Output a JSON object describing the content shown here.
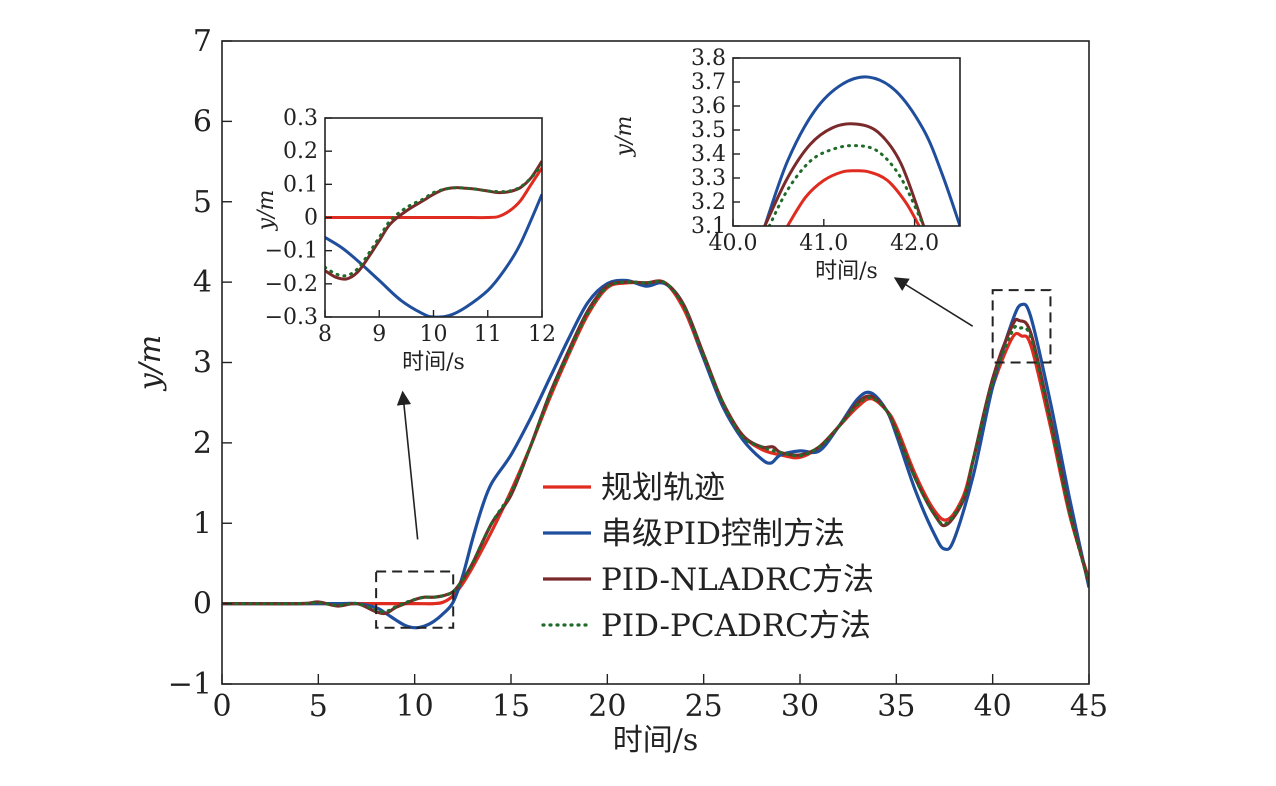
{
  "colors": {
    "planned": "#e02b20",
    "cascade_pid": "#1f4e9c",
    "pid_nladrc": "#7a2a2a",
    "pid_pcadrc": "#1f6b2a",
    "axis": "#222222",
    "dashed_box": "#222222"
  },
  "chart_data": [
    {
      "id": "main",
      "type": "line",
      "xlabel": "时间/s",
      "ylabel": "y/m",
      "xlim": [
        0,
        45
      ],
      "ylim": [
        -1,
        7
      ],
      "xticks": [
        0,
        5,
        10,
        15,
        20,
        25,
        30,
        35,
        40,
        45
      ],
      "yticks": [
        -1,
        0,
        1,
        2,
        3,
        4,
        5,
        6,
        7
      ],
      "xtick_labels": [
        "0",
        "5",
        "10",
        "15",
        "20",
        "25",
        "30",
        "35",
        "40",
        "45"
      ],
      "ytick_labels": [
        "−1",
        "0",
        "1",
        "2",
        "3",
        "4",
        "5",
        "6",
        "7"
      ],
      "legend_position": "center",
      "series": [
        {
          "name": "规划轨迹",
          "color_key": "planned",
          "style": "solid",
          "x": [
            0,
            2,
            4,
            6,
            8,
            10,
            11,
            11.5,
            12,
            12.5,
            13,
            14,
            15,
            16,
            17,
            18,
            19,
            20,
            21,
            22,
            23,
            24,
            25,
            26,
            27,
            28,
            29,
            30,
            31,
            32,
            33,
            33.7,
            34.5,
            35,
            36,
            37,
            37.7,
            38.5,
            39,
            40,
            41,
            41.5,
            42,
            43,
            44,
            45
          ],
          "y": [
            0,
            0,
            0,
            0,
            0,
            0,
            0,
            0.02,
            0.1,
            0.25,
            0.45,
            0.9,
            1.4,
            1.95,
            2.55,
            3.1,
            3.6,
            3.93,
            3.99,
            3.99,
            3.99,
            3.65,
            3.05,
            2.5,
            2.1,
            1.92,
            1.85,
            1.82,
            1.95,
            2.2,
            2.45,
            2.55,
            2.4,
            2.2,
            1.6,
            1.15,
            1.05,
            1.35,
            1.8,
            2.7,
            3.3,
            3.33,
            3.2,
            2.2,
            1.1,
            0.3
          ]
        },
        {
          "name": "串级PID控制方法",
          "color_key": "cascade_pid",
          "style": "solid",
          "x": [
            0,
            2,
            4,
            6,
            7,
            8,
            8.5,
            9,
            9.5,
            10,
            10.5,
            11,
            11.5,
            12,
            12.5,
            13,
            13.5,
            14,
            15,
            16,
            17,
            18,
            19,
            20,
            21,
            22,
            23,
            24,
            25,
            26,
            27,
            28,
            28.5,
            29,
            30,
            31,
            32,
            33,
            33.7,
            34.5,
            35,
            36,
            37,
            37.5,
            38,
            39,
            40,
            41,
            41.5,
            42,
            43,
            44,
            45
          ],
          "y": [
            0,
            0,
            0,
            0,
            0,
            -0.05,
            -0.12,
            -0.2,
            -0.27,
            -0.3,
            -0.28,
            -0.22,
            -0.12,
            0.02,
            0.35,
            0.8,
            1.2,
            1.5,
            1.85,
            2.3,
            2.8,
            3.3,
            3.75,
            3.98,
            4.02,
            3.95,
            3.98,
            3.7,
            3.05,
            2.45,
            2.05,
            1.8,
            1.75,
            1.85,
            1.9,
            1.9,
            2.2,
            2.55,
            2.62,
            2.4,
            2.1,
            1.4,
            0.85,
            0.68,
            0.8,
            1.6,
            2.7,
            3.5,
            3.72,
            3.55,
            2.5,
            1.3,
            0.2
          ]
        },
        {
          "name": "PID-NLADRC方法",
          "color_key": "pid_nladrc",
          "style": "solid",
          "x": [
            0,
            4,
            5,
            6,
            7,
            8,
            8.5,
            9,
            9.5,
            10,
            10.5,
            11,
            11.5,
            12,
            12.5,
            13,
            14,
            15,
            16,
            17,
            18,
            19,
            20,
            21,
            22,
            23,
            24,
            25,
            26,
            27,
            28,
            28.6,
            29,
            30,
            31,
            32,
            33,
            33.7,
            34.5,
            35,
            36,
            37,
            37.6,
            38.5,
            39,
            40,
            41,
            41.4,
            42,
            43,
            44,
            45
          ],
          "y": [
            0,
            0,
            0.02,
            -0.03,
            0,
            -0.1,
            -0.12,
            -0.05,
            0,
            0.05,
            0.08,
            0.08,
            0.1,
            0.15,
            0.3,
            0.5,
            1.0,
            1.35,
            1.95,
            2.6,
            3.15,
            3.65,
            3.95,
            4.0,
            3.99,
            3.99,
            3.7,
            3.1,
            2.5,
            2.1,
            1.95,
            1.95,
            1.88,
            1.85,
            1.95,
            2.2,
            2.5,
            2.58,
            2.4,
            2.15,
            1.55,
            1.1,
            0.98,
            1.3,
            1.8,
            2.8,
            3.45,
            3.52,
            3.35,
            2.3,
            1.15,
            0.25
          ]
        },
        {
          "name": "PID-PCADRC方法",
          "color_key": "pid_pcadrc",
          "style": "dotted",
          "x": [
            0,
            4,
            5,
            6,
            7,
            8,
            8.5,
            9,
            9.5,
            10,
            10.5,
            11,
            11.5,
            12,
            12.5,
            13,
            14,
            15,
            16,
            17,
            18,
            19,
            20,
            21,
            22,
            23,
            24,
            25,
            26,
            27,
            28,
            29,
            30,
            31,
            32,
            33,
            33.7,
            34.5,
            35,
            36,
            37,
            37.6,
            38.5,
            39,
            40,
            41,
            41.4,
            42,
            43,
            44,
            45
          ],
          "y": [
            0,
            0,
            0.01,
            -0.02,
            0,
            -0.08,
            -0.1,
            -0.04,
            0.01,
            0.05,
            0.08,
            0.08,
            0.1,
            0.15,
            0.3,
            0.5,
            1.0,
            1.38,
            1.95,
            2.58,
            3.12,
            3.62,
            3.94,
            4.0,
            3.99,
            3.99,
            3.68,
            3.08,
            2.5,
            2.08,
            1.95,
            1.88,
            1.84,
            1.95,
            2.2,
            2.48,
            2.56,
            2.4,
            2.15,
            1.55,
            1.1,
            1.0,
            1.32,
            1.8,
            2.75,
            3.38,
            3.43,
            3.3,
            2.25,
            1.12,
            0.25
          ]
        }
      ],
      "zoom_boxes": [
        {
          "x": [
            8,
            12
          ],
          "y": [
            -0.3,
            0.4
          ]
        },
        {
          "x": [
            40,
            43
          ],
          "y": [
            3.0,
            3.9
          ]
        }
      ]
    },
    {
      "id": "inset-left",
      "type": "line",
      "xlabel": "时间/s",
      "ylabel": "y/m",
      "xlim": [
        8,
        12
      ],
      "ylim": [
        -0.3,
        0.3
      ],
      "xticks": [
        8,
        9,
        10,
        11,
        12
      ],
      "yticks": [
        -0.3,
        -0.2,
        -0.1,
        0,
        0.1,
        0.2,
        0.3
      ],
      "xtick_labels": [
        "8",
        "9",
        "10",
        "11",
        "12"
      ],
      "ytick_labels": [
        "−0.3",
        "−0.2",
        "−0.1",
        "0",
        "0.1",
        "0.2",
        "0.3"
      ],
      "series": [
        {
          "name": "规划轨迹",
          "color_key": "planned",
          "style": "solid",
          "x": [
            8,
            9,
            10,
            10.5,
            11,
            11.2,
            11.4,
            11.6,
            11.8,
            12
          ],
          "y": [
            0,
            0,
            0,
            0,
            0,
            0.003,
            0.02,
            0.05,
            0.1,
            0.15
          ]
        },
        {
          "name": "串级PID控制方法",
          "color_key": "cascade_pid",
          "style": "solid",
          "x": [
            8,
            8.3,
            8.6,
            9,
            9.4,
            9.8,
            10,
            10.3,
            10.6,
            11,
            11.3,
            11.6,
            12
          ],
          "y": [
            -0.06,
            -0.09,
            -0.13,
            -0.19,
            -0.25,
            -0.29,
            -0.3,
            -0.295,
            -0.27,
            -0.22,
            -0.16,
            -0.08,
            0.07
          ]
        },
        {
          "name": "PID-NLADRC方法",
          "color_key": "pid_nladrc",
          "style": "solid",
          "x": [
            8,
            8.2,
            8.4,
            8.6,
            8.8,
            9,
            9.2,
            9.5,
            9.8,
            10,
            10.2,
            10.4,
            10.6,
            10.8,
            11,
            11.2,
            11.4,
            11.6,
            11.8,
            12
          ],
          "y": [
            -0.16,
            -0.18,
            -0.185,
            -0.165,
            -0.12,
            -0.07,
            -0.02,
            0.02,
            0.05,
            0.07,
            0.085,
            0.09,
            0.088,
            0.085,
            0.08,
            0.075,
            0.078,
            0.09,
            0.12,
            0.17
          ]
        },
        {
          "name": "PID-PCADRC方法",
          "color_key": "pid_pcadrc",
          "style": "dotted",
          "x": [
            8,
            8.2,
            8.4,
            8.6,
            8.8,
            9,
            9.2,
            9.5,
            9.8,
            10,
            10.2,
            10.4,
            10.6,
            10.8,
            11,
            11.2,
            11.4,
            11.6,
            11.8,
            12
          ],
          "y": [
            -0.15,
            -0.17,
            -0.175,
            -0.155,
            -0.11,
            -0.06,
            -0.01,
            0.03,
            0.055,
            0.075,
            0.085,
            0.09,
            0.088,
            0.085,
            0.08,
            0.078,
            0.08,
            0.092,
            0.12,
            0.16
          ]
        }
      ]
    },
    {
      "id": "inset-right",
      "type": "line",
      "xlabel": "时间/s",
      "ylabel": "y/m",
      "xlim": [
        40,
        42.5
      ],
      "ylim": [
        3.1,
        3.8
      ],
      "xticks": [
        40,
        41,
        42
      ],
      "yticks": [
        3.1,
        3.2,
        3.3,
        3.4,
        3.5,
        3.6,
        3.7,
        3.8
      ],
      "xtick_labels": [
        "40.0",
        "41.0",
        "42.0"
      ],
      "ytick_labels": [
        "3.1",
        "3.2",
        "3.3",
        "3.4",
        "3.5",
        "3.6",
        "3.7",
        "3.8"
      ],
      "series": [
        {
          "name": "规划轨迹",
          "color_key": "planned",
          "style": "solid",
          "x": [
            40.6,
            40.8,
            41.0,
            41.2,
            41.35,
            41.5,
            41.7,
            41.9,
            42.05
          ],
          "y": [
            3.1,
            3.22,
            3.29,
            3.325,
            3.33,
            3.325,
            3.29,
            3.2,
            3.1
          ]
        },
        {
          "name": "串级PID控制方法",
          "color_key": "cascade_pid",
          "style": "solid",
          "x": [
            40.35,
            40.6,
            40.9,
            41.2,
            41.5,
            41.8,
            42.1,
            42.3,
            42.5
          ],
          "y": [
            3.1,
            3.37,
            3.58,
            3.69,
            3.72,
            3.66,
            3.5,
            3.32,
            3.1
          ]
        },
        {
          "name": "PID-NLADRC方法",
          "color_key": "pid_nladrc",
          "style": "solid",
          "x": [
            40.35,
            40.6,
            40.85,
            41.1,
            41.35,
            41.6,
            41.85,
            42.1
          ],
          "y": [
            3.1,
            3.3,
            3.44,
            3.51,
            3.525,
            3.49,
            3.36,
            3.1
          ]
        },
        {
          "name": "PID-PCADRC方法",
          "color_key": "pid_pcadrc",
          "style": "dotted",
          "x": [
            40.4,
            40.6,
            40.85,
            41.1,
            41.35,
            41.6,
            41.85,
            42.1
          ],
          "y": [
            3.1,
            3.25,
            3.37,
            3.42,
            3.435,
            3.41,
            3.3,
            3.1
          ]
        }
      ]
    }
  ]
}
